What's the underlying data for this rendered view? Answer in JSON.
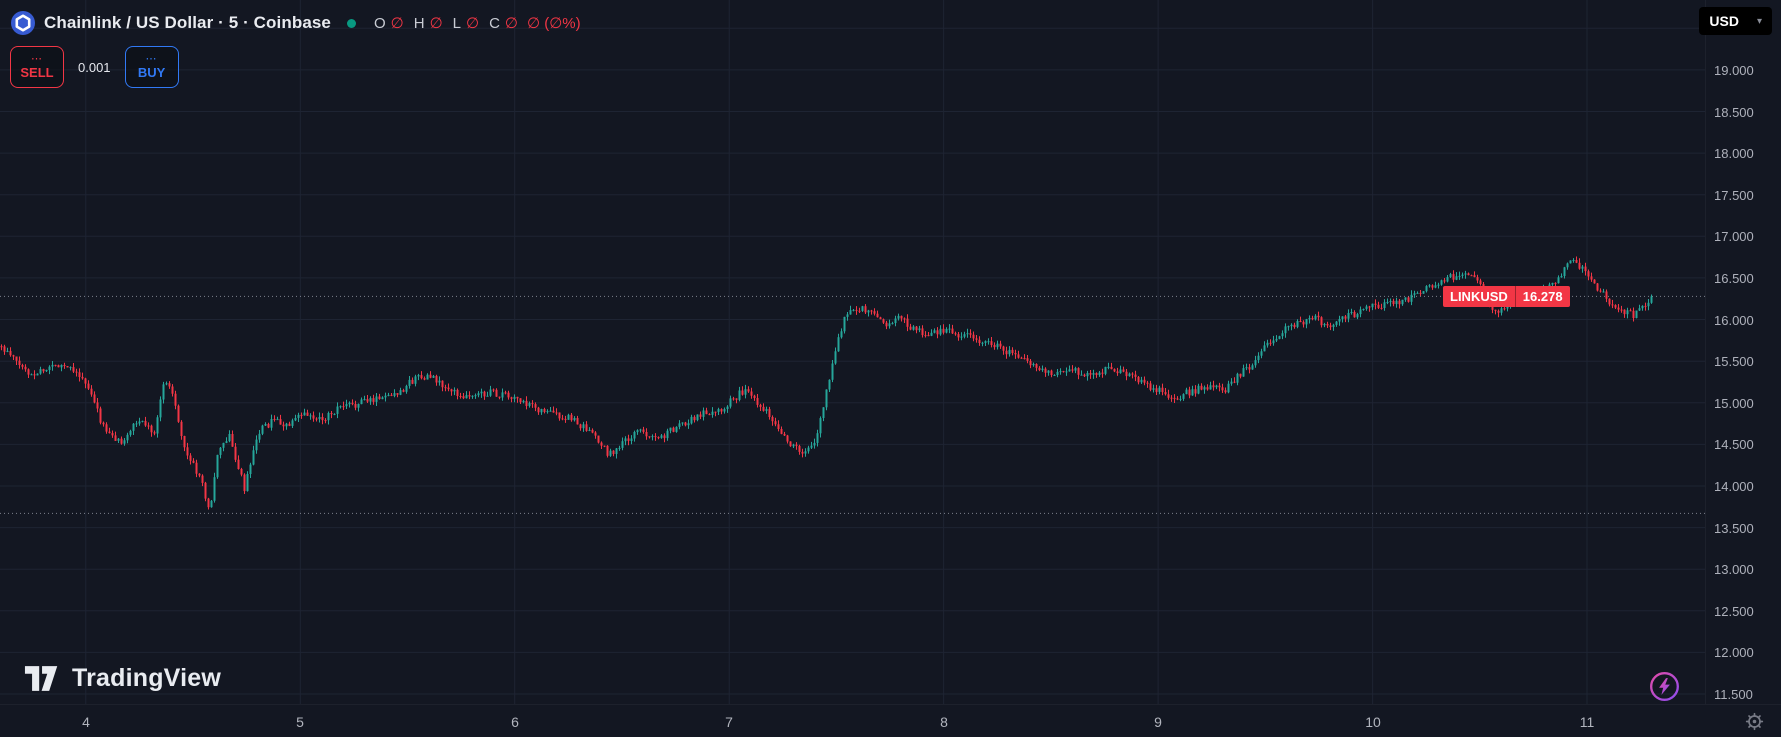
{
  "header": {
    "symbol_title": "Chainlink / US Dollar · 5 · Coinbase",
    "ohlc": {
      "o_label": "O",
      "o_value": "∅",
      "h_label": "H",
      "h_value": "∅",
      "l_label": "L",
      "l_value": "∅",
      "c_label": "C",
      "c_value": "∅",
      "change": "∅ (∅%)"
    },
    "currency_button": "USD",
    "currency_caret": "▾"
  },
  "trade_panel": {
    "sell_price": "⋯",
    "sell_label": "SELL",
    "quantity": "0.001",
    "buy_price": "⋯",
    "buy_label": "BUY"
  },
  "price_label": {
    "symbol": "LINKUSD",
    "price": "16.278"
  },
  "watermark": "TradingView",
  "chart_data": {
    "type": "candlestick",
    "title": "Chainlink / US Dollar · 5 · Coinbase",
    "symbol": "LINKUSD",
    "exchange": "Coinbase",
    "interval_minutes": 5,
    "quote_currency": "USD",
    "last_price": 16.278,
    "price_axis": {
      "labels": [
        "19.000",
        "18.500",
        "18.000",
        "17.500",
        "17.000",
        "16.500",
        "16.000",
        "15.500",
        "15.000",
        "14.500",
        "14.000",
        "13.500",
        "13.000",
        "12.500",
        "12.000",
        "11.500"
      ],
      "step": 0.5,
      "visible_range": [
        11.38,
        19.84
      ]
    },
    "time_axis": {
      "labels": [
        "4",
        "5",
        "6",
        "7",
        "8",
        "9",
        "10",
        "11"
      ],
      "visible_range": [
        3.6,
        11.55
      ]
    },
    "dotted_levels": [
      16.278,
      13.67
    ],
    "grid": true,
    "colors": {
      "up": "#26a69a",
      "down": "#f23645",
      "price_label_bg": "#f23645",
      "buy": "#3179f5",
      "sell": "#f23645",
      "status_dot": "#089981",
      "chainlink_blue": "#375bd2"
    },
    "price_path": [
      [
        3.6,
        15.68
      ],
      [
        3.74,
        15.34
      ],
      [
        3.88,
        15.47
      ],
      [
        3.95,
        15.41
      ],
      [
        4.02,
        15.13
      ],
      [
        4.09,
        14.66
      ],
      [
        4.16,
        14.52
      ],
      [
        4.25,
        14.79
      ],
      [
        4.32,
        14.66
      ],
      [
        4.37,
        15.3
      ],
      [
        4.41,
        15.1
      ],
      [
        4.46,
        14.45
      ],
      [
        4.53,
        14.11
      ],
      [
        4.58,
        13.7
      ],
      [
        4.62,
        14.45
      ],
      [
        4.67,
        14.59
      ],
      [
        4.74,
        13.97
      ],
      [
        4.81,
        14.66
      ],
      [
        4.88,
        14.79
      ],
      [
        4.95,
        14.72
      ],
      [
        5.01,
        14.86
      ],
      [
        5.09,
        14.79
      ],
      [
        5.18,
        14.93
      ],
      [
        5.28,
        15.0
      ],
      [
        5.37,
        15.07
      ],
      [
        5.46,
        15.13
      ],
      [
        5.56,
        15.34
      ],
      [
        5.63,
        15.27
      ],
      [
        5.7,
        15.13
      ],
      [
        5.79,
        15.07
      ],
      [
        5.88,
        15.13
      ],
      [
        5.98,
        15.07
      ],
      [
        6.09,
        14.93
      ],
      [
        6.19,
        14.86
      ],
      [
        6.28,
        14.79
      ],
      [
        6.37,
        14.59
      ],
      [
        6.44,
        14.38
      ],
      [
        6.51,
        14.52
      ],
      [
        6.58,
        14.66
      ],
      [
        6.68,
        14.59
      ],
      [
        6.77,
        14.72
      ],
      [
        6.86,
        14.86
      ],
      [
        6.96,
        14.93
      ],
      [
        7.07,
        15.15
      ],
      [
        7.14,
        15.0
      ],
      [
        7.21,
        14.79
      ],
      [
        7.28,
        14.52
      ],
      [
        7.35,
        14.38
      ],
      [
        7.4,
        14.52
      ],
      [
        7.45,
        15.07
      ],
      [
        7.49,
        15.61
      ],
      [
        7.54,
        16.02
      ],
      [
        7.58,
        16.16
      ],
      [
        7.66,
        16.09
      ],
      [
        7.73,
        15.95
      ],
      [
        7.8,
        16.02
      ],
      [
        7.86,
        15.88
      ],
      [
        7.93,
        15.82
      ],
      [
        8.0,
        15.88
      ],
      [
        8.07,
        15.82
      ],
      [
        8.17,
        15.75
      ],
      [
        8.26,
        15.68
      ],
      [
        8.35,
        15.54
      ],
      [
        8.45,
        15.41
      ],
      [
        8.52,
        15.34
      ],
      [
        8.59,
        15.41
      ],
      [
        8.68,
        15.34
      ],
      [
        8.77,
        15.41
      ],
      [
        8.87,
        15.34
      ],
      [
        8.96,
        15.2
      ],
      [
        9.08,
        15.07
      ],
      [
        9.15,
        15.13
      ],
      [
        9.24,
        15.2
      ],
      [
        9.31,
        15.13
      ],
      [
        9.38,
        15.34
      ],
      [
        9.45,
        15.47
      ],
      [
        9.52,
        15.75
      ],
      [
        9.59,
        15.88
      ],
      [
        9.66,
        15.95
      ],
      [
        9.73,
        16.02
      ],
      [
        9.8,
        15.88
      ],
      [
        9.87,
        16.02
      ],
      [
        9.94,
        16.09
      ],
      [
        10.01,
        16.16
      ],
      [
        10.15,
        16.23
      ],
      [
        10.29,
        16.43
      ],
      [
        10.43,
        16.57
      ],
      [
        10.5,
        16.43
      ],
      [
        10.55,
        16.16
      ],
      [
        10.59,
        16.09
      ],
      [
        10.66,
        16.23
      ],
      [
        10.73,
        16.16
      ],
      [
        10.8,
        16.36
      ],
      [
        10.87,
        16.5
      ],
      [
        10.92,
        16.7
      ],
      [
        10.97,
        16.64
      ],
      [
        11.01,
        16.5
      ],
      [
        11.08,
        16.3
      ],
      [
        11.15,
        16.09
      ],
      [
        11.22,
        16.05
      ],
      [
        11.31,
        16.28
      ]
    ]
  }
}
